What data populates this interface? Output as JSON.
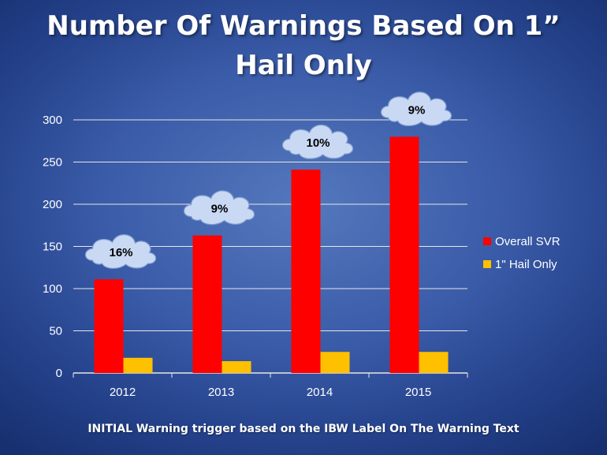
{
  "slide": {
    "title_line1": "Number Of Warnings Based On 1”",
    "title_line2": "Hail Only",
    "footer": "INITIAL Warning trigger based on the IBW Label On The Warning Text"
  },
  "colors": {
    "overall_svr": "#ff0000",
    "hail_only": "#ffc000",
    "axis_text": "#ffffff",
    "gridline": "#e6e6e6",
    "cloud_fill": "#c9d9f4",
    "cloud_text": "#000000"
  },
  "chart_data": {
    "type": "bar",
    "title": "Number Of Warnings Based On 1” Hail Only",
    "categories": [
      "2012",
      "2013",
      "2014",
      "2015"
    ],
    "series": [
      {
        "name": "Overall SVR",
        "values": [
          111,
          163,
          241,
          280
        ]
      },
      {
        "name": "1\" Hail Only",
        "values": [
          18,
          14,
          25,
          25
        ]
      }
    ],
    "annotations": [
      "16%",
      "9%",
      "10%",
      "9%"
    ],
    "ylim": [
      0,
      300
    ],
    "yticks": [
      0,
      50,
      100,
      150,
      200,
      250,
      300
    ],
    "grid": true,
    "legend": "right"
  }
}
